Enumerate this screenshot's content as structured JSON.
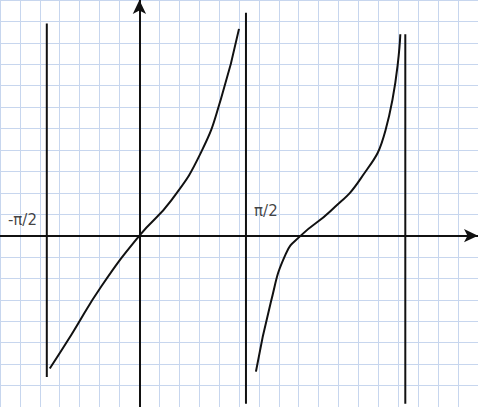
{
  "chart_data": {
    "type": "line",
    "xlim": [
      -2.8,
      6.8
    ],
    "xticks": [
      -2.8,
      -2.4,
      -2.0,
      -1.6,
      -1.2,
      -0.8,
      -0.4,
      0,
      0.4,
      0.8,
      1.2,
      1.6,
      2.0,
      2.4,
      2.8,
      3.2,
      3.6,
      4.0,
      4.4,
      4.8,
      5.2,
      5.6,
      6.0,
      6.4,
      6.8
    ],
    "ylim": [
      -3.2,
      4.4
    ],
    "yticks": [
      -3.2,
      -2.8,
      -2.4,
      -2.0,
      -1.6,
      -1.2,
      -0.8,
      -0.4,
      0,
      0.4,
      0.8,
      1.2,
      1.6,
      2.0,
      2.4,
      2.8,
      3.2,
      3.6,
      4.0,
      4.4
    ],
    "grid": true,
    "tick_labels": false,
    "series": [
      {
        "color": "#111111",
        "line_style": "solid",
        "x": [
          -1.8,
          -1.36,
          -0.76,
          0,
          0.64,
          1.24,
          1.64,
          2.0
        ],
        "values": [
          -2.48,
          -1.84,
          -0.94,
          0,
          0.66,
          1.56,
          2.56,
          3.86
        ]
      },
      {
        "color": "#111111",
        "line_style": "solid",
        "x": [
          2.34,
          2.64,
          2.94,
          3.24,
          3.84,
          4.44,
          4.94,
          5.24
        ],
        "values": [
          -2.54,
          -1.24,
          -0.34,
          0,
          0.46,
          1.06,
          1.96,
          3.76
        ]
      },
      {
        "color": "#111111",
        "line_style": "solid",
        "x": [
          -1.86,
          -1.86
        ],
        "values": [
          3.96,
          -2.64
        ]
      },
      {
        "color": "#111111",
        "line_style": "solid",
        "x": [
          2.14,
          2.14
        ],
        "values": [
          4.16,
          -3.14
        ]
      },
      {
        "color": "#111111",
        "line_style": "solid",
        "x": [
          5.34,
          5.34
        ],
        "values": [
          3.76,
          -3.14
        ]
      }
    ],
    "annotations": [
      {
        "text": "-π/2",
        "x": -2.35,
        "y": 0.3
      },
      {
        "text": "π/2",
        "x": 2.54,
        "y": 0.46
      }
    ]
  }
}
